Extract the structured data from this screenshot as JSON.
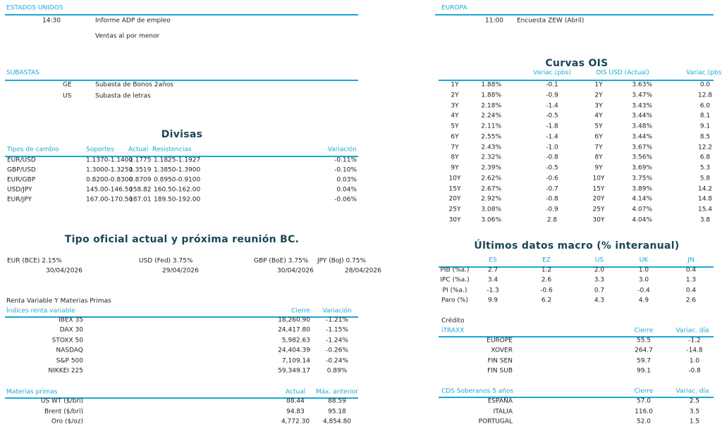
{
  "calendar": {
    "us": {
      "label": "ESTADOS UNIDOS",
      "events": [
        {
          "time": "14:30",
          "text": "Informe ADP de empleo"
        },
        {
          "time": "",
          "text": "Ventas al por menor"
        }
      ]
    },
    "europe": {
      "label": "EUROPA",
      "events": [
        {
          "time": "11:00",
          "text": "Encuesta ZEW (Abril)"
        }
      ]
    },
    "auctions": {
      "label": "SUBASTAS",
      "items": [
        {
          "country": "GE",
          "text": "Subasta de Bonos 2años"
        },
        {
          "country": "US",
          "text": "Subasta de letras"
        }
      ]
    }
  },
  "fx": {
    "title": "Divisas",
    "headers": [
      "Tipos de cambio",
      "Soportes",
      "Actual",
      "Resistencias",
      "Variación"
    ],
    "rows": [
      [
        "EUR/USD",
        "1.1370-1.1400",
        "1.1775",
        "1.1825-1.1927",
        "-0.11%"
      ],
      [
        "GBP/USD",
        "1.3000-1.3250",
        "1.3519",
        "1.3850-1.3900",
        "-0.10%"
      ],
      [
        "EUR/GBP",
        "0.8200-0.8300",
        "0.8709",
        "0.8950-0.9100",
        "0.03%"
      ],
      [
        "USD/JPY",
        "145.00-146.50",
        "158.82",
        "160.50-162.00",
        "0.04%"
      ],
      [
        "EUR/JPY",
        "167.00-170.50",
        "187.01",
        "189.50-192.00",
        "-0.06%"
      ]
    ]
  },
  "central_banks": {
    "title": "Tipo oficial actual y próxima reunión BC.",
    "items": [
      {
        "rate": "EUR (BCE) 2.15%",
        "date": "30/04/2026"
      },
      {
        "rate": "USD (Fed) 3.75%",
        "date": "29/04/2026"
      },
      {
        "rate": "GBP (BoE) 3.75%",
        "date": "30/04/2026"
      },
      {
        "rate": "JPY (BoJ) 0.75%",
        "date": "28/04/2026"
      }
    ]
  },
  "equities": {
    "section": "Renta Variable Y Materias Primas",
    "headers": [
      "Índices renta variable",
      "Cierre",
      "Variación"
    ],
    "rows": [
      [
        "IBEX 35",
        "18,260.90",
        "-1.21%"
      ],
      [
        "DAX 30",
        "24,417.80",
        "-1.15%"
      ],
      [
        "STOXX 50",
        "5,982.63",
        "-1.24%"
      ],
      [
        "NASDAQ",
        "24,404.39",
        "-0.26%"
      ],
      [
        "S&P 500",
        "7,109.14",
        "-0.24%"
      ],
      [
        "NIKKEI 225",
        "59,349.17",
        "0.89%"
      ]
    ]
  },
  "commodities": {
    "headers": [
      "Materias primas",
      "Actual",
      "Máx. anterior"
    ],
    "rows": [
      [
        "US WT ($/brl)",
        "88.44",
        "88.59"
      ],
      [
        "Brent ($/brl)",
        "94.83",
        "95.18"
      ],
      [
        "Oro ($/oz)",
        "4,772.30",
        "4,854.80"
      ]
    ]
  },
  "ois": {
    "title": "Curvas OIS",
    "headers": [
      "Variac.(pbs)",
      "OIS USD (Actual)",
      "Variac.(pbs)"
    ],
    "rows": [
      [
        "1Y",
        "1.88%",
        "-0.1",
        "1Y",
        "3.63%",
        "0.0"
      ],
      [
        "2Y",
        "1.88%",
        "-0.9",
        "2Y",
        "3.47%",
        "12.8"
      ],
      [
        "3Y",
        "2.18%",
        "-1.4",
        "3Y",
        "3.43%",
        "6.0"
      ],
      [
        "4Y",
        "2.24%",
        "-0.5",
        "4Y",
        "3.44%",
        "8.1"
      ],
      [
        "5Y",
        "2.11%",
        "-1.8",
        "5Y",
        "3.48%",
        "9.1"
      ],
      [
        "6Y",
        "2.55%",
        "-1.4",
        "6Y",
        "3.44%",
        "8.5"
      ],
      [
        "7Y",
        "2.43%",
        "-1.0",
        "7Y",
        "3.67%",
        "12.2"
      ],
      [
        "8Y",
        "2.32%",
        "-0.8",
        "8Y",
        "3.56%",
        "6.8"
      ],
      [
        "9Y",
        "2.39%",
        "-0.5",
        "9Y",
        "3.69%",
        "5.3"
      ],
      [
        "10Y",
        "2.62%",
        "-0.6",
        "10Y",
        "3.75%",
        "5.8"
      ],
      [
        "15Y",
        "2.67%",
        "-0.7",
        "15Y",
        "3.89%",
        "14.2"
      ],
      [
        "20Y",
        "2.92%",
        "-0.8",
        "20Y",
        "4.14%",
        "14.8"
      ],
      [
        "25Y",
        "3.08%",
        "-0.9",
        "25Y",
        "4.07%",
        "15.4"
      ],
      [
        "30Y",
        "3.06%",
        "2.8",
        "30Y",
        "4.04%",
        "3.8"
      ]
    ]
  },
  "macro": {
    "title": "Últimos datos macro (% interanual)",
    "headers": [
      "ES",
      "EZ",
      "US",
      "UK",
      "JN"
    ],
    "rows": [
      [
        "PIB (%a.)",
        "2.7",
        "1.2",
        "2.0",
        "1.0",
        "0.4"
      ],
      [
        "IPC (%a.)",
        "3.4",
        "2.6",
        "3.3",
        "3.0",
        "1.3"
      ],
      [
        "PI (%a.)",
        "-1.3",
        "-0.6",
        "0.7",
        "-0.4",
        "0.4"
      ],
      [
        "Paro (%)",
        "9.9",
        "6.2",
        "4.3",
        "4.9",
        "2.6"
      ]
    ]
  },
  "credit": {
    "section": "Crédito",
    "headers": [
      "iTRAXX",
      "Cierre",
      "Variac. día"
    ],
    "rows": [
      [
        "EUROPE",
        "55.5",
        "-1.2"
      ],
      [
        "XOVER",
        "264.7",
        "-14.8"
      ],
      [
        "FIN SEN",
        "59.7",
        "1.0"
      ],
      [
        "FIN SUB",
        "99.1",
        "-0.8"
      ]
    ]
  },
  "cds": {
    "headers": [
      "CDS Soberanos 5 años",
      "Cierre",
      "Variac. día"
    ],
    "rows": [
      [
        "ESPAÑA",
        "57.0",
        "2.5"
      ],
      [
        "ITALIA",
        "116.0",
        "3.5"
      ],
      [
        "PORTUGAL",
        "52.0",
        "1.5"
      ]
    ]
  },
  "colors": {
    "accent": "#19a8d8",
    "title": "#1b4656"
  }
}
